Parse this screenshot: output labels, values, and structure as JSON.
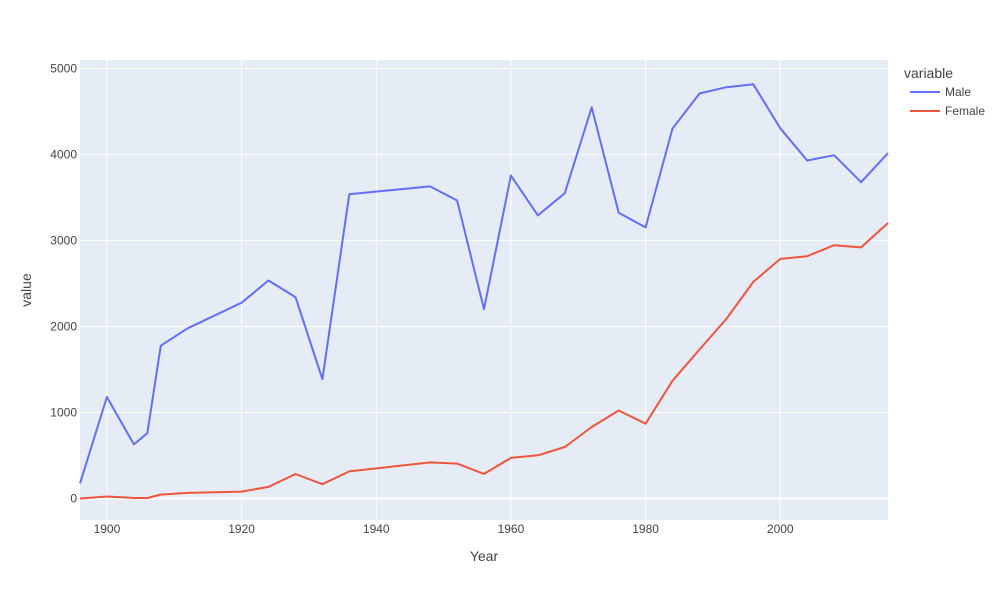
{
  "chart_data": {
    "type": "line",
    "title": "",
    "xlabel": "Year",
    "ylabel": "value",
    "xlim": [
      1896,
      2016
    ],
    "ylim": [
      -250,
      5100
    ],
    "x_ticks": [
      1900,
      1920,
      1940,
      1960,
      1980,
      2000
    ],
    "y_ticks": [
      0,
      1000,
      2000,
      3000,
      4000,
      5000
    ],
    "grid": true,
    "legend_title": "variable",
    "legend_position": "top-right, outside plot",
    "background_color": "#e5ecf6",
    "x": [
      1896,
      1900,
      1904,
      1906,
      1908,
      1912,
      1920,
      1924,
      1928,
      1932,
      1936,
      1948,
      1952,
      1956,
      1960,
      1964,
      1968,
      1972,
      1976,
      1980,
      1984,
      1988,
      1992,
      1996,
      2000,
      2004,
      2008,
      2012,
      2016
    ],
    "series": [
      {
        "name": "Male",
        "color": "#636efa",
        "values": [
          176,
          1180,
          629,
          759,
          1777,
          1980,
          2277,
          2536,
          2343,
          1387,
          3539,
          3630,
          3466,
          2203,
          3755,
          3293,
          3551,
          4549,
          3323,
          3153,
          4302,
          4710,
          4784,
          4817,
          4306,
          3931,
          3993,
          3679,
          4017
        ]
      },
      {
        "name": "Female",
        "color": "#ef553b",
        "values": [
          0,
          23,
          6,
          6,
          45,
          65,
          80,
          135,
          285,
          166,
          315,
          420,
          406,
          286,
          472,
          503,
          599,
          832,
          1024,
          870,
          1370,
          1733,
          2089,
          2519,
          2787,
          2818,
          2946,
          2920,
          3204
        ]
      }
    ]
  }
}
